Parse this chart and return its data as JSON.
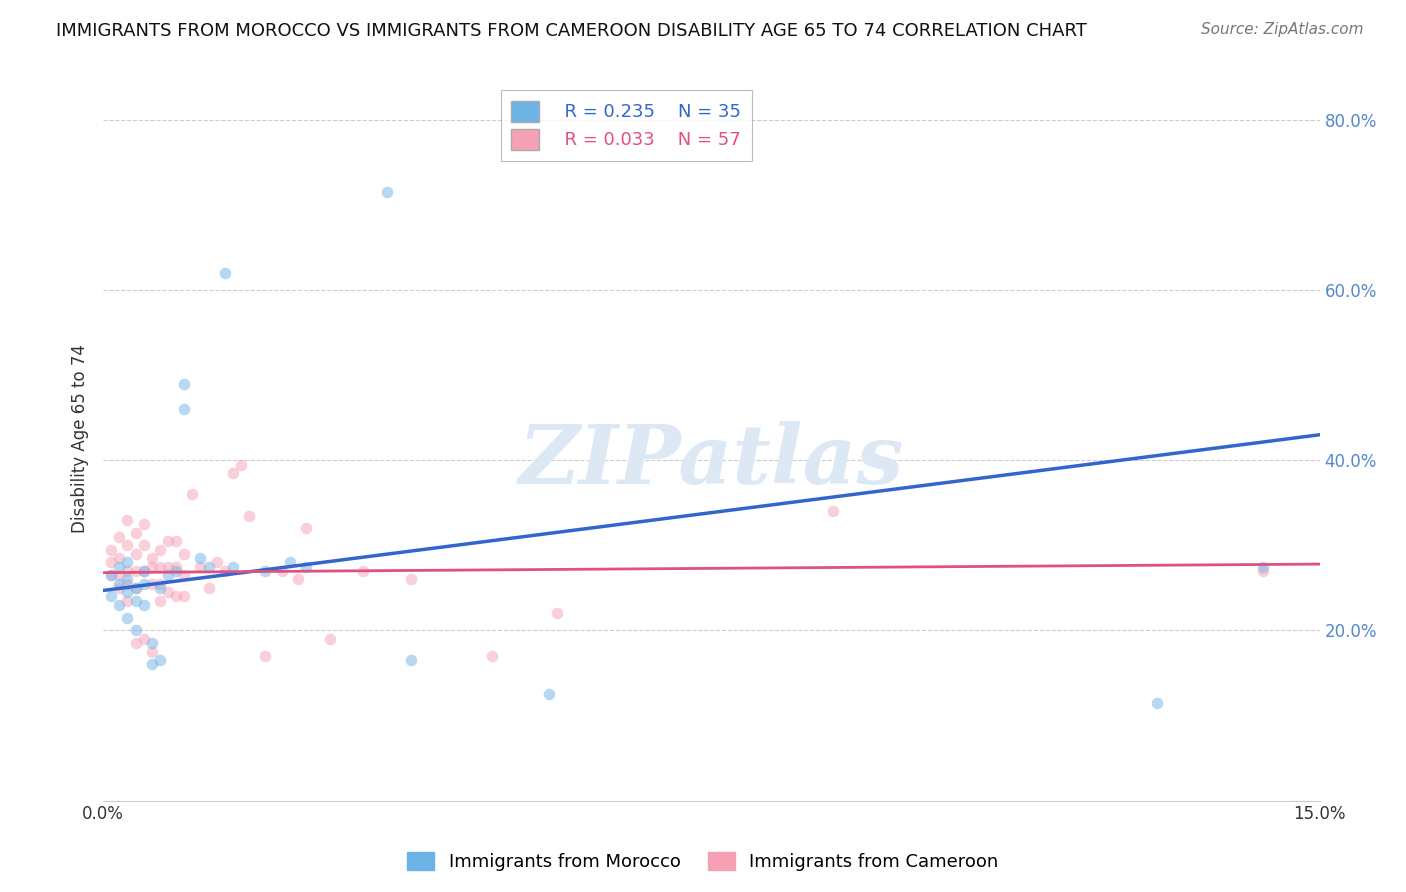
{
  "title": "IMMIGRANTS FROM MOROCCO VS IMMIGRANTS FROM CAMEROON DISABILITY AGE 65 TO 74 CORRELATION CHART",
  "source": "Source: ZipAtlas.com",
  "ylabel": "Disability Age 65 to 74",
  "xlim": [
    0.0,
    0.15
  ],
  "ylim": [
    0.0,
    0.85
  ],
  "x_ticks": [
    0.0,
    0.03,
    0.06,
    0.09,
    0.12,
    0.15
  ],
  "x_tick_labels": [
    "0.0%",
    "",
    "",
    "",
    "",
    "15.0%"
  ],
  "y_tick_labels_right": [
    "20.0%",
    "40.0%",
    "60.0%",
    "80.0%"
  ],
  "y_ticks_right": [
    0.2,
    0.4,
    0.6,
    0.8
  ],
  "morocco_color": "#6eb3e8",
  "cameroon_color": "#f5a0b5",
  "morocco_line_color": "#3366cc",
  "cameroon_line_color": "#e05080",
  "legend_R_morocco": "R = 0.235",
  "legend_N_morocco": "N = 35",
  "legend_R_cameroon": "R = 0.033",
  "legend_N_cameroon": "N = 57",
  "morocco_x": [
    0.001,
    0.001,
    0.002,
    0.002,
    0.002,
    0.003,
    0.003,
    0.003,
    0.003,
    0.004,
    0.004,
    0.004,
    0.005,
    0.005,
    0.005,
    0.006,
    0.006,
    0.007,
    0.007,
    0.008,
    0.009,
    0.01,
    0.01,
    0.012,
    0.013,
    0.015,
    0.016,
    0.02,
    0.023,
    0.025,
    0.035,
    0.038,
    0.055,
    0.13,
    0.143
  ],
  "morocco_y": [
    0.265,
    0.24,
    0.275,
    0.255,
    0.23,
    0.28,
    0.26,
    0.245,
    0.215,
    0.25,
    0.235,
    0.2,
    0.27,
    0.255,
    0.23,
    0.185,
    0.16,
    0.165,
    0.25,
    0.265,
    0.27,
    0.49,
    0.46,
    0.285,
    0.275,
    0.62,
    0.275,
    0.27,
    0.28,
    0.275,
    0.715,
    0.165,
    0.125,
    0.115,
    0.275
  ],
  "cameroon_x": [
    0.001,
    0.001,
    0.001,
    0.002,
    0.002,
    0.002,
    0.002,
    0.003,
    0.003,
    0.003,
    0.003,
    0.003,
    0.004,
    0.004,
    0.004,
    0.004,
    0.004,
    0.005,
    0.005,
    0.005,
    0.005,
    0.006,
    0.006,
    0.006,
    0.006,
    0.007,
    0.007,
    0.007,
    0.007,
    0.008,
    0.008,
    0.008,
    0.009,
    0.009,
    0.009,
    0.01,
    0.01,
    0.01,
    0.011,
    0.012,
    0.013,
    0.014,
    0.015,
    0.016,
    0.017,
    0.018,
    0.02,
    0.022,
    0.024,
    0.025,
    0.028,
    0.032,
    0.038,
    0.048,
    0.056,
    0.09,
    0.143
  ],
  "cameroon_y": [
    0.295,
    0.28,
    0.265,
    0.31,
    0.285,
    0.265,
    0.25,
    0.33,
    0.3,
    0.27,
    0.255,
    0.235,
    0.315,
    0.29,
    0.27,
    0.25,
    0.185,
    0.325,
    0.3,
    0.27,
    0.19,
    0.285,
    0.275,
    0.255,
    0.175,
    0.295,
    0.275,
    0.255,
    0.235,
    0.305,
    0.275,
    0.245,
    0.305,
    0.275,
    0.24,
    0.29,
    0.265,
    0.24,
    0.36,
    0.275,
    0.25,
    0.28,
    0.27,
    0.385,
    0.395,
    0.335,
    0.17,
    0.27,
    0.26,
    0.32,
    0.19,
    0.27,
    0.26,
    0.17,
    0.22,
    0.34,
    0.27
  ],
  "background_color": "#ffffff",
  "grid_color": "#cccccc",
  "watermark_text": "ZIPatlas",
  "watermark_color": "#dde8f5",
  "scatter_size": 70,
  "scatter_alpha": 0.5,
  "title_fontsize": 13,
  "source_fontsize": 11,
  "ylabel_fontsize": 12,
  "tick_fontsize": 12,
  "legend_fontsize": 13
}
